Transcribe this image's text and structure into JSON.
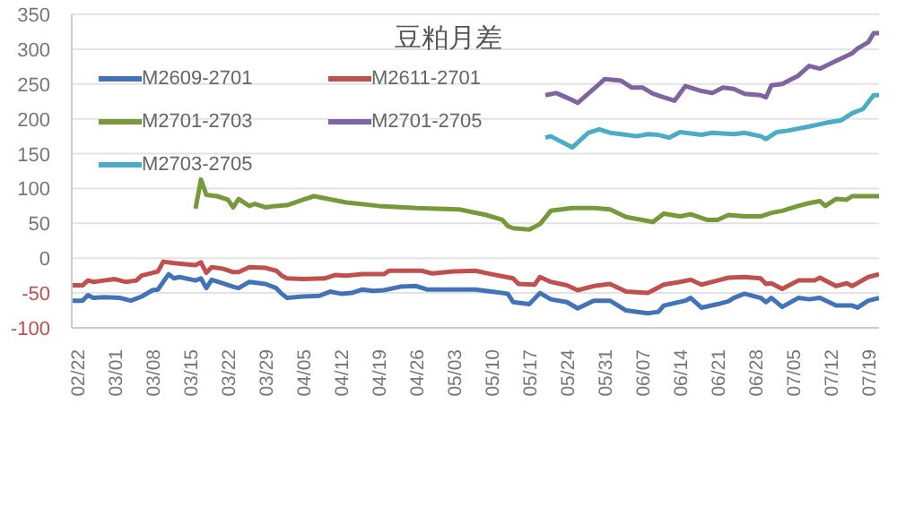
{
  "chart_data": {
    "type": "line",
    "title": "豆粕月差",
    "legend": "top left",
    "grid": "y",
    "marker": "none",
    "line_style": "solid",
    "ylim": [
      -100,
      350
    ],
    "yticks": [
      -100,
      -50,
      0,
      50,
      100,
      150,
      200,
      250,
      300,
      350
    ],
    "xlim": [
      "--02-21",
      "--07-21"
    ],
    "xticks": [
      {
        "value": "--02-22",
        "label": "02/22"
      },
      {
        "value": "--03-01",
        "label": "03/01"
      },
      {
        "value": "--03-08",
        "label": "03/08"
      },
      {
        "value": "--03-15",
        "label": "03/15"
      },
      {
        "value": "--03-22",
        "label": "03/22"
      },
      {
        "value": "--03-29",
        "label": "03/29"
      },
      {
        "value": "--04-05",
        "label": "04/05"
      },
      {
        "value": "--04-12",
        "label": "04/12"
      },
      {
        "value": "--04-19",
        "label": "04/19"
      },
      {
        "value": "--04-26",
        "label": "04/26"
      },
      {
        "value": "--05-03",
        "label": "05/03"
      },
      {
        "value": "--05-10",
        "label": "05/10"
      },
      {
        "value": "--05-17",
        "label": "05/17"
      },
      {
        "value": "--05-24",
        "label": "05/24"
      },
      {
        "value": "--05-31",
        "label": "05/31"
      },
      {
        "value": "--06-07",
        "label": "06/07"
      },
      {
        "value": "--06-14",
        "label": "06/14"
      },
      {
        "value": "--06-21",
        "label": "06/21"
      },
      {
        "value": "--06-28",
        "label": "06/28"
      },
      {
        "value": "--07-05",
        "label": "07/05"
      },
      {
        "value": "--07-12",
        "label": "07/12"
      },
      {
        "value": "--07-19",
        "label": "07/19"
      }
    ],
    "series": [
      {
        "name": "M2609-2701",
        "color": "#4273b8",
        "x": [
          "--02-21",
          "--02-23",
          "--02-24",
          "--02-25",
          "--02-27",
          "--03-02",
          "--03-04",
          "--03-06",
          "--03-08",
          "--03-09",
          "--03-11",
          "--03-12",
          "--03-13",
          "--03-16",
          "--03-17",
          "--03-18",
          "--03-19",
          "--03-21",
          "--03-23",
          "--03-24",
          "--03-26",
          "--03-29",
          "--03-31",
          "--04-01",
          "--04-02",
          "--04-05",
          "--04-08",
          "--04-10",
          "--04-12",
          "--04-14",
          "--04-16",
          "--04-18",
          "--04-20",
          "--04-23",
          "--04-26",
          "--04-28",
          "--05-03",
          "--05-07",
          "--05-10",
          "--05-13",
          "--05-14",
          "--05-17",
          "--05-19",
          "--05-21",
          "--05-24",
          "--05-26",
          "--05-29",
          "--06-01",
          "--06-04",
          "--06-08",
          "--06-10",
          "--06-11",
          "--06-15",
          "--06-16",
          "--06-18",
          "--06-21",
          "--06-23",
          "--06-24",
          "--06-26",
          "--06-29",
          "--06-30",
          "--07-01",
          "--07-03",
          "--07-06",
          "--07-08",
          "--07-10",
          "--07-13",
          "--07-16",
          "--07-17",
          "--07-19",
          "--07-21"
        ],
        "values": [
          -61,
          -61,
          -53,
          -57,
          -56,
          -57,
          -61,
          -55,
          -46,
          -45,
          -23,
          -29,
          -27,
          -32,
          -29,
          -43,
          -31,
          -36,
          -41,
          -43,
          -34,
          -37,
          -43,
          -51,
          -57,
          -55,
          -54,
          -48,
          -51,
          -50,
          -45,
          -47,
          -46,
          -41,
          -40,
          -45,
          -45,
          -45,
          -48,
          -51,
          -63,
          -66,
          -50,
          -59,
          -63,
          -72,
          -61,
          -61,
          -75,
          -79,
          -77,
          -68,
          -61,
          -57,
          -71,
          -66,
          -62,
          -57,
          -51,
          -57,
          -63,
          -57,
          -70,
          -57,
          -59,
          -57,
          -68,
          -68,
          -71,
          -61,
          -57
        ]
      },
      {
        "name": "M2611-2701",
        "color": "#c0504d",
        "x": [
          "--02-21",
          "--02-23",
          "--02-24",
          "--02-25",
          "--02-27",
          "--03-01",
          "--03-03",
          "--03-05",
          "--03-06",
          "--03-08",
          "--03-09",
          "--03-10",
          "--03-12",
          "--03-16",
          "--03-17",
          "--03-18",
          "--03-19",
          "--03-21",
          "--03-23",
          "--03-24",
          "--03-26",
          "--03-29",
          "--03-31",
          "--04-01",
          "--04-02",
          "--04-05",
          "--04-09",
          "--04-11",
          "--04-13",
          "--04-16",
          "--04-20",
          "--04-21",
          "--04-25",
          "--04-27",
          "--04-29",
          "--05-03",
          "--05-07",
          "--05-10",
          "--05-14",
          "--05-15",
          "--05-18",
          "--05-19",
          "--05-21",
          "--05-24",
          "--05-26",
          "--05-29",
          "--06-01",
          "--06-04",
          "--06-08",
          "--06-09",
          "--06-11",
          "--06-14",
          "--06-16",
          "--06-18",
          "--06-21",
          "--06-23",
          "--06-26",
          "--06-29",
          "--06-30",
          "--07-01",
          "--07-03",
          "--07-06",
          "--07-09",
          "--07-10",
          "--07-13",
          "--07-15",
          "--07-16",
          "--07-19",
          "--07-21"
        ],
        "values": [
          -39,
          -39,
          -32,
          -34,
          -32,
          -30,
          -34,
          -32,
          -25,
          -21,
          -19,
          -5,
          -7,
          -10,
          -6,
          -21,
          -13,
          -15,
          -20,
          -20,
          -13,
          -14,
          -18,
          -25,
          -29,
          -30,
          -29,
          -24,
          -25,
          -23,
          -23,
          -18,
          -18,
          -18,
          -22,
          -19,
          -18,
          -23,
          -29,
          -37,
          -38,
          -27,
          -34,
          -39,
          -46,
          -40,
          -37,
          -48,
          -50,
          -46,
          -38,
          -34,
          -31,
          -38,
          -32,
          -28,
          -27,
          -29,
          -37,
          -36,
          -44,
          -32,
          -32,
          -28,
          -40,
          -36,
          -40,
          -27,
          -23
        ]
      },
      {
        "name": "M2701-2703",
        "color": "#77993a",
        "x": [
          "--03-16",
          "--03-17",
          "--03-18",
          "--03-20",
          "--03-22",
          "--03-23",
          "--03-24",
          "--03-26",
          "--03-27",
          "--03-29",
          "--03-31",
          "--04-02",
          "--04-05",
          "--04-07",
          "--04-13",
          "--04-19",
          "--04-26",
          "--05-04",
          "--05-09",
          "--05-12",
          "--05-13",
          "--05-14",
          "--05-17",
          "--05-19",
          "--05-21",
          "--05-25",
          "--05-29",
          "--06-01",
          "--06-04",
          "--06-09",
          "--06-11",
          "--06-14",
          "--06-16",
          "--06-19",
          "--06-21",
          "--06-23",
          "--06-26",
          "--06-29",
          "--07-01",
          "--07-03",
          "--07-06",
          "--07-08",
          "--07-10",
          "--07-11",
          "--07-13",
          "--07-15",
          "--07-16",
          "--07-19",
          "--07-21"
        ],
        "values": [
          71,
          113,
          91,
          89,
          84,
          73,
          85,
          75,
          78,
          73,
          75,
          76,
          84,
          89,
          80,
          75,
          72,
          70,
          62,
          55,
          46,
          43,
          41,
          49,
          68,
          72,
          72,
          70,
          59,
          52,
          64,
          60,
          63,
          55,
          55,
          62,
          60,
          60,
          65,
          68,
          75,
          79,
          82,
          75,
          85,
          84,
          89,
          89,
          89
        ]
      },
      {
        "name": "M2701-2705",
        "color": "#8064a2",
        "x": [
          "--05-20",
          "--05-22",
          "--05-25",
          "--05-26",
          "--05-30",
          "--05-31",
          "--06-03",
          "--06-05",
          "--06-07",
          "--06-09",
          "--06-11",
          "--06-13",
          "--06-15",
          "--06-18",
          "--06-20",
          "--06-22",
          "--06-24",
          "--06-26",
          "--06-29",
          "--06-30",
          "--07-01",
          "--07-03",
          "--07-06",
          "--07-08",
          "--07-10",
          "--07-13",
          "--07-16",
          "--07-17",
          "--07-19",
          "--07-20",
          "--07-21"
        ],
        "values": [
          234,
          237,
          227,
          223,
          250,
          257,
          255,
          245,
          245,
          236,
          231,
          226,
          247,
          240,
          237,
          245,
          243,
          236,
          234,
          231,
          248,
          250,
          262,
          276,
          272,
          283,
          294,
          301,
          310,
          323,
          323
        ]
      },
      {
        "name": "M2703-2705",
        "color": "#4bacc6",
        "x": [
          "--05-20",
          "--05-21",
          "--05-25",
          "--05-28",
          "--05-30",
          "--06-01",
          "--06-04",
          "--06-06",
          "--06-08",
          "--06-10",
          "--06-12",
          "--06-14",
          "--06-18",
          "--06-20",
          "--06-24",
          "--06-26",
          "--06-29",
          "--06-30",
          "--07-02",
          "--07-04",
          "--07-08",
          "--07-11",
          "--07-14",
          "--07-16",
          "--07-18",
          "--07-20",
          "--07-21"
        ],
        "values": [
          173,
          175,
          159,
          180,
          185,
          180,
          177,
          175,
          178,
          177,
          173,
          181,
          177,
          180,
          178,
          180,
          175,
          171,
          181,
          183,
          189,
          194,
          198,
          208,
          214,
          234,
          234
        ]
      }
    ]
  }
}
